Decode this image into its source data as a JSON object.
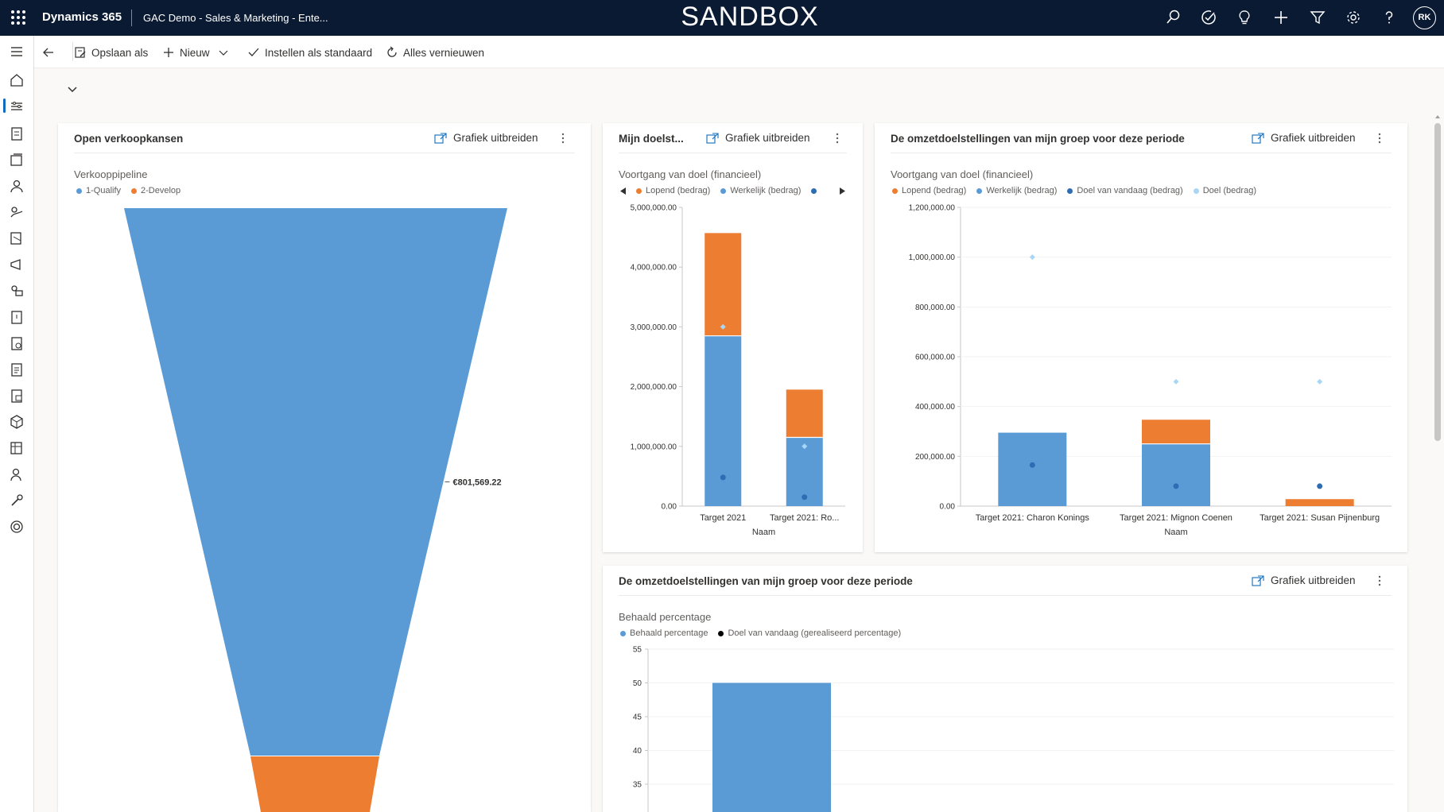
{
  "topbar": {
    "brand": "Dynamics 365",
    "app_name": "GAC Demo - Sales & Marketing - Ente...",
    "environment_banner": "SANDBOX",
    "icons": [
      "search-icon",
      "task-check-icon",
      "lightbulb-icon",
      "plus-icon",
      "filter-icon",
      "settings-gear-icon",
      "help-icon"
    ],
    "user_initials": "RK"
  },
  "commandbar": {
    "back_icon": "arrow-left-icon",
    "save_as": "Opslaan als",
    "new": "Nieuw",
    "set_default": "Instellen als standaard",
    "refresh_all": "Alles vernieuwen"
  },
  "leftnav": {
    "items": [
      "hamburger-icon",
      "home-icon",
      "dashboard-icon",
      "activities-icon",
      "accounts-icon",
      "contacts-icon",
      "leads-icon",
      "opportunities-icon",
      "campaigns-icon",
      "competitors-icon",
      "quotes-icon",
      "orders-icon",
      "invoices-icon",
      "documents-icon",
      "products-icon",
      "price-lists-icon",
      "users-icon",
      "tools-icon",
      "goals-icon"
    ]
  },
  "colors": {
    "blue": "#5b9bd5",
    "orange": "#ed7d31",
    "dark_blue": "#2e6db4",
    "light_blue": "#a9d6f5",
    "black": "#000000",
    "topbar": "#0b1a33"
  },
  "cards": {
    "pipeline": {
      "title": "Open verkoopkansen",
      "expand_label": "Grafiek uitbreiden",
      "chart_title": "Verkooppipeline",
      "legend": [
        "1-Qualify",
        "2-Develop"
      ],
      "data_label": "€801,569.22"
    },
    "goals": {
      "title": "Mijn doelst...",
      "expand_label": "Grafiek uitbreiden",
      "chart_title": "Voortgang van doel (financieel)",
      "legend": [
        "Lopend (bedrag)",
        "Werkelijk (bedrag)"
      ],
      "x_title": "Naam"
    },
    "group_goals": {
      "title": "De omzetdoelstellingen van mijn groep voor deze periode",
      "expand_label": "Grafiek uitbreiden",
      "chart_title": "Voortgang van doel (financieel)",
      "legend": [
        "Lopend (bedrag)",
        "Werkelijk (bedrag)",
        "Doel van vandaag (bedrag)",
        "Doel (bedrag)"
      ],
      "x_title": "Naam"
    },
    "percentage": {
      "title": "De omzetdoelstellingen van mijn groep voor deze periode",
      "expand_label": "Grafiek uitbreiden",
      "chart_title": "Behaald percentage",
      "legend": [
        "Behaald percentage",
        "Doel van vandaag (gerealiseerd percentage)"
      ]
    }
  },
  "chart_data": [
    {
      "type": "funnel",
      "title": "Verkooppipeline",
      "categories": [
        "1-Qualify",
        "2-Develop"
      ],
      "values": [
        801569.22,
        60000
      ],
      "data_labels": [
        "€801,569.22"
      ]
    },
    {
      "type": "bar",
      "stacked": true,
      "title": "Voortgang van doel (financieel)",
      "xlabel": "Naam",
      "categories": [
        "Target 2021",
        "Target 2021: Ro..."
      ],
      "ylim": [
        0,
        5000000
      ],
      "yticks": [
        "0.00",
        "1,000,000.00",
        "2,000,000.00",
        "3,000,000.00",
        "4,000,000.00",
        "5,000,000.00"
      ],
      "series": [
        {
          "name": "Werkelijk (bedrag)",
          "values": [
            2850000,
            1150000
          ]
        },
        {
          "name": "Lopend (bedrag)",
          "values": [
            1720000,
            800000
          ]
        },
        {
          "name": "Doel van vandaag (bedrag)",
          "type": "scatter",
          "values": [
            480000,
            150000
          ]
        },
        {
          "name": "Doel (bedrag)",
          "type": "scatter",
          "values": [
            3000000,
            1000000
          ]
        }
      ]
    },
    {
      "type": "bar",
      "stacked": true,
      "title": "Voortgang van doel (financieel)",
      "xlabel": "Naam",
      "categories": [
        "Target 2021: Charon Konings",
        "Target 2021: Mignon Coenen",
        "Target 2021: Susan Pijnenburg"
      ],
      "ylim": [
        0,
        1200000
      ],
      "yticks": [
        "0.00",
        "200,000.00",
        "400,000.00",
        "600,000.00",
        "800,000.00",
        "1,000,000.00",
        "1,200,000.00"
      ],
      "series": [
        {
          "name": "Werkelijk (bedrag)",
          "values": [
            295000,
            250000,
            0
          ]
        },
        {
          "name": "Lopend (bedrag)",
          "values": [
            0,
            97000,
            28000
          ]
        },
        {
          "name": "Doel van vandaag (bedrag)",
          "type": "scatter",
          "values": [
            165000,
            80000,
            80000
          ]
        },
        {
          "name": "Doel (bedrag)",
          "type": "scatter",
          "values": [
            1000000,
            500000,
            500000
          ]
        }
      ]
    },
    {
      "type": "bar",
      "title": "Behaald percentage",
      "yticks": [
        "35",
        "40",
        "45",
        "50",
        "55"
      ],
      "ylim": [
        30,
        55
      ],
      "categories": [
        ""
      ],
      "series": [
        {
          "name": "Behaald percentage",
          "values": [
            50
          ]
        }
      ]
    }
  ]
}
